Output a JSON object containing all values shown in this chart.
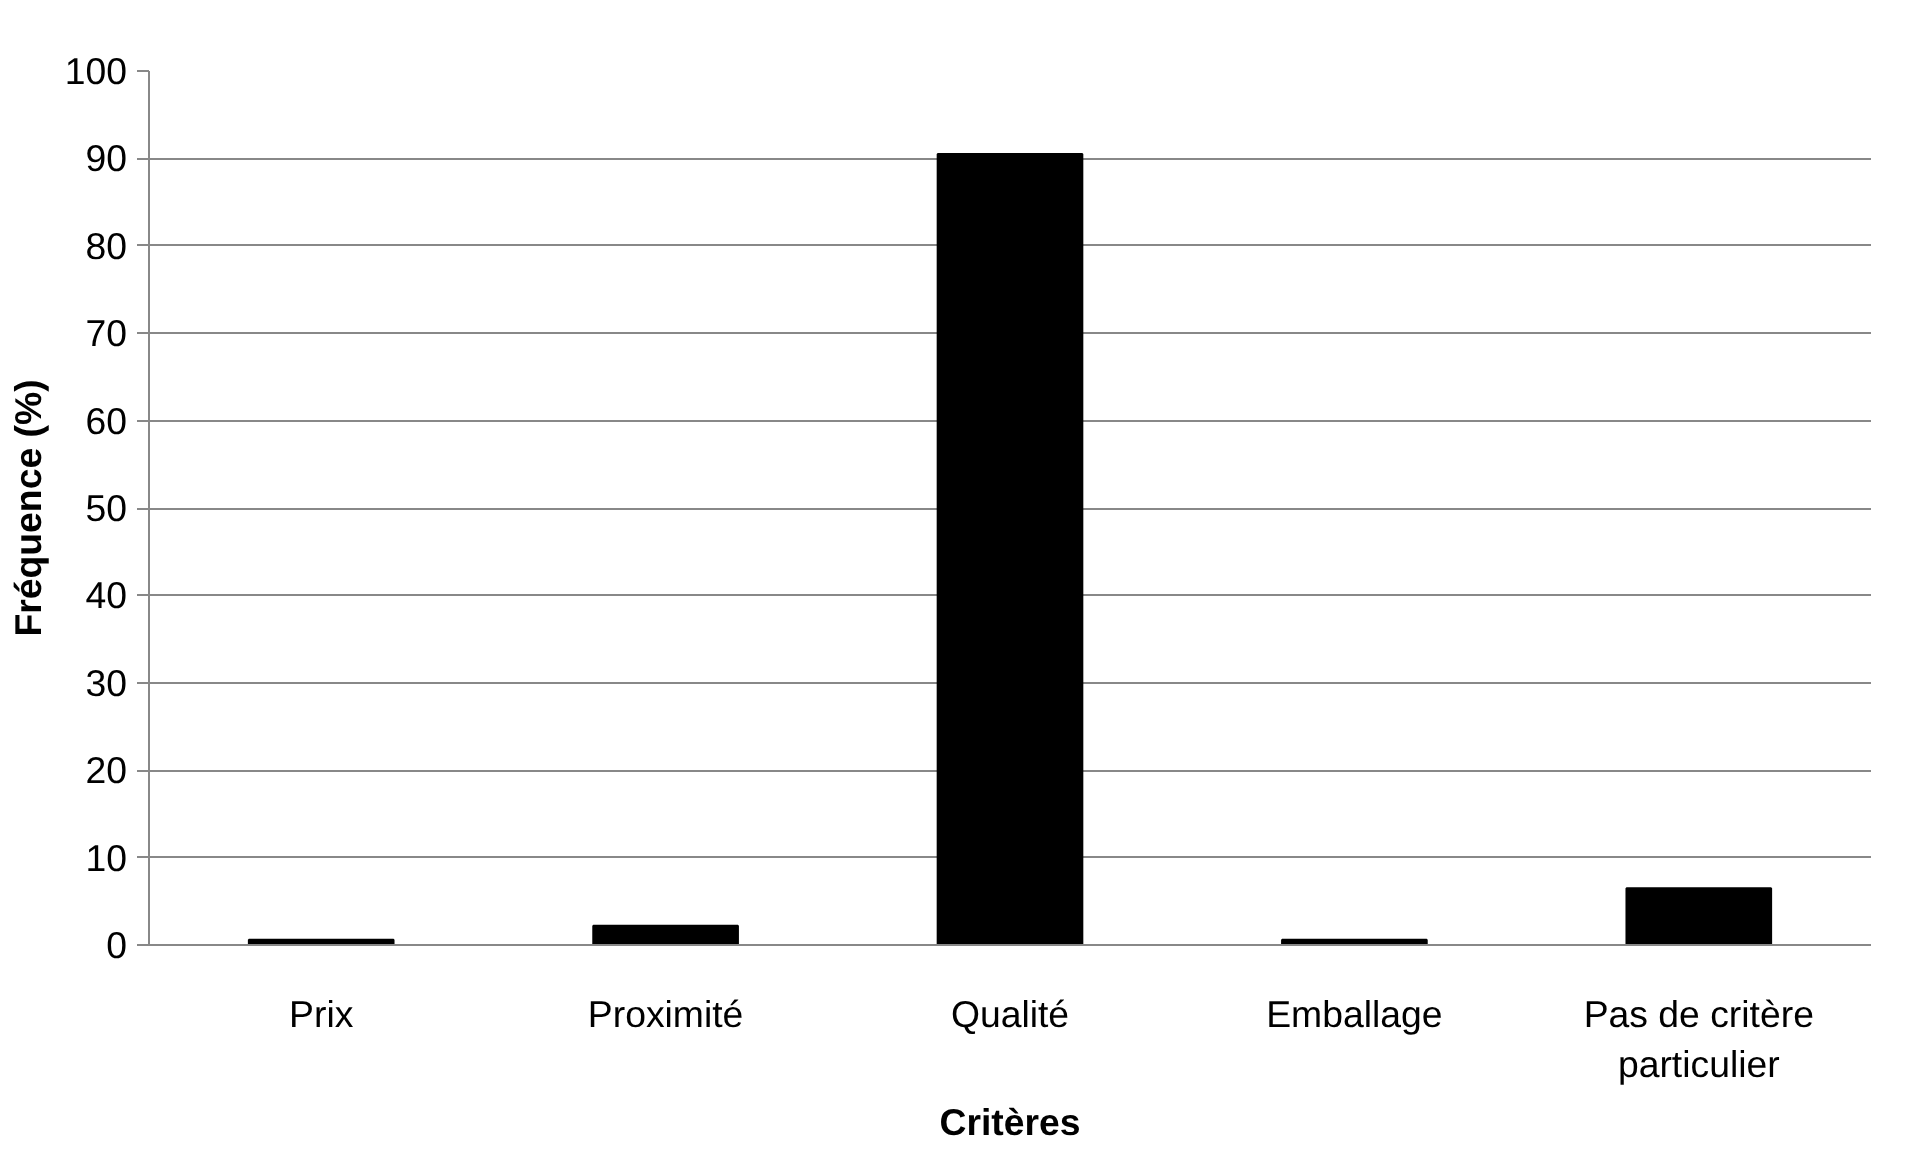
{
  "chart_data": {
    "type": "bar",
    "xlabel": "Critères",
    "ylabel": "Fréquence (%)",
    "categories": [
      "Prix",
      "Proximité",
      "Qualité",
      "Emballage",
      "Pas de critère particulier"
    ],
    "values": [
      0.6,
      2.2,
      90.5,
      0.6,
      6.5
    ],
    "color": "#000000",
    "ylim": [
      0,
      100
    ],
    "yticks": [
      0,
      10,
      20,
      30,
      40,
      50,
      60,
      70,
      80,
      90,
      100
    ],
    "grid": "y"
  }
}
